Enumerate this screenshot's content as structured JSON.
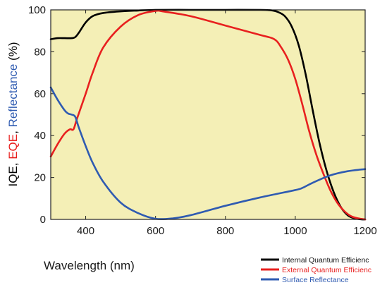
{
  "chart_data": {
    "type": "line",
    "xlabel": "Wavelength (nm)",
    "ylabel_parts": [
      {
        "text": "IQE",
        "color": "#000000"
      },
      {
        "text": ", ",
        "color": "#000000"
      },
      {
        "text": "EQE",
        "color": "#e8201f"
      },
      {
        "text": ", ",
        "color": "#000000"
      },
      {
        "text": "Reflectance",
        "color": "#2f5bb1"
      },
      {
        "text": " (%)",
        "color": "#000000"
      }
    ],
    "xlim": [
      300,
      1200
    ],
    "ylim": [
      0,
      100
    ],
    "x_ticks": [
      400,
      600,
      800,
      1000,
      1200
    ],
    "y_ticks": [
      0,
      20,
      40,
      60,
      80,
      100
    ],
    "plot_background": "#f4efb6",
    "legend_position": "bottom-right",
    "series": [
      {
        "name": "Internal Quantum Efficienc",
        "color": "#000000",
        "points": [
          [
            300,
            86
          ],
          [
            320,
            86.5
          ],
          [
            340,
            86.5
          ],
          [
            360,
            86.5
          ],
          [
            370,
            87
          ],
          [
            380,
            89
          ],
          [
            400,
            94
          ],
          [
            420,
            97
          ],
          [
            450,
            98.5
          ],
          [
            500,
            99.3
          ],
          [
            550,
            99.7
          ],
          [
            600,
            100
          ],
          [
            700,
            100
          ],
          [
            800,
            100
          ],
          [
            900,
            100
          ],
          [
            930,
            99.8
          ],
          [
            950,
            99
          ],
          [
            970,
            97
          ],
          [
            990,
            92
          ],
          [
            1010,
            83
          ],
          [
            1030,
            69
          ],
          [
            1050,
            52
          ],
          [
            1070,
            36
          ],
          [
            1090,
            23
          ],
          [
            1110,
            13
          ],
          [
            1130,
            6
          ],
          [
            1150,
            2
          ],
          [
            1170,
            0.5
          ],
          [
            1190,
            0
          ],
          [
            1200,
            0
          ]
        ]
      },
      {
        "name": "External Quantum Efficienc",
        "color": "#e8201f",
        "points": [
          [
            300,
            30
          ],
          [
            320,
            36
          ],
          [
            340,
            41
          ],
          [
            355,
            43
          ],
          [
            365,
            43
          ],
          [
            375,
            48
          ],
          [
            400,
            60
          ],
          [
            420,
            70
          ],
          [
            450,
            82
          ],
          [
            500,
            92
          ],
          [
            550,
            97.5
          ],
          [
            600,
            99.5
          ],
          [
            620,
            99.3
          ],
          [
            700,
            97
          ],
          [
            800,
            92.5
          ],
          [
            900,
            88
          ],
          [
            940,
            86
          ],
          [
            960,
            82
          ],
          [
            980,
            76
          ],
          [
            1000,
            67
          ],
          [
            1020,
            55
          ],
          [
            1040,
            42
          ],
          [
            1060,
            31
          ],
          [
            1080,
            22
          ],
          [
            1100,
            14
          ],
          [
            1120,
            8
          ],
          [
            1140,
            4
          ],
          [
            1160,
            1.5
          ],
          [
            1180,
            0.5
          ],
          [
            1200,
            0
          ]
        ]
      },
      {
        "name": "Surface Reflectance",
        "color": "#2f5bb1",
        "points": [
          [
            300,
            63
          ],
          [
            320,
            57
          ],
          [
            340,
            52
          ],
          [
            350,
            50.5
          ],
          [
            360,
            50
          ],
          [
            370,
            49
          ],
          [
            380,
            44
          ],
          [
            400,
            35
          ],
          [
            420,
            27
          ],
          [
            450,
            18
          ],
          [
            500,
            8
          ],
          [
            550,
            3
          ],
          [
            600,
            0.3
          ],
          [
            650,
            0.5
          ],
          [
            700,
            2
          ],
          [
            800,
            6.5
          ],
          [
            900,
            10.5
          ],
          [
            1000,
            14
          ],
          [
            1020,
            15
          ],
          [
            1050,
            17.5
          ],
          [
            1100,
            21
          ],
          [
            1150,
            23
          ],
          [
            1200,
            24
          ]
        ]
      }
    ]
  }
}
